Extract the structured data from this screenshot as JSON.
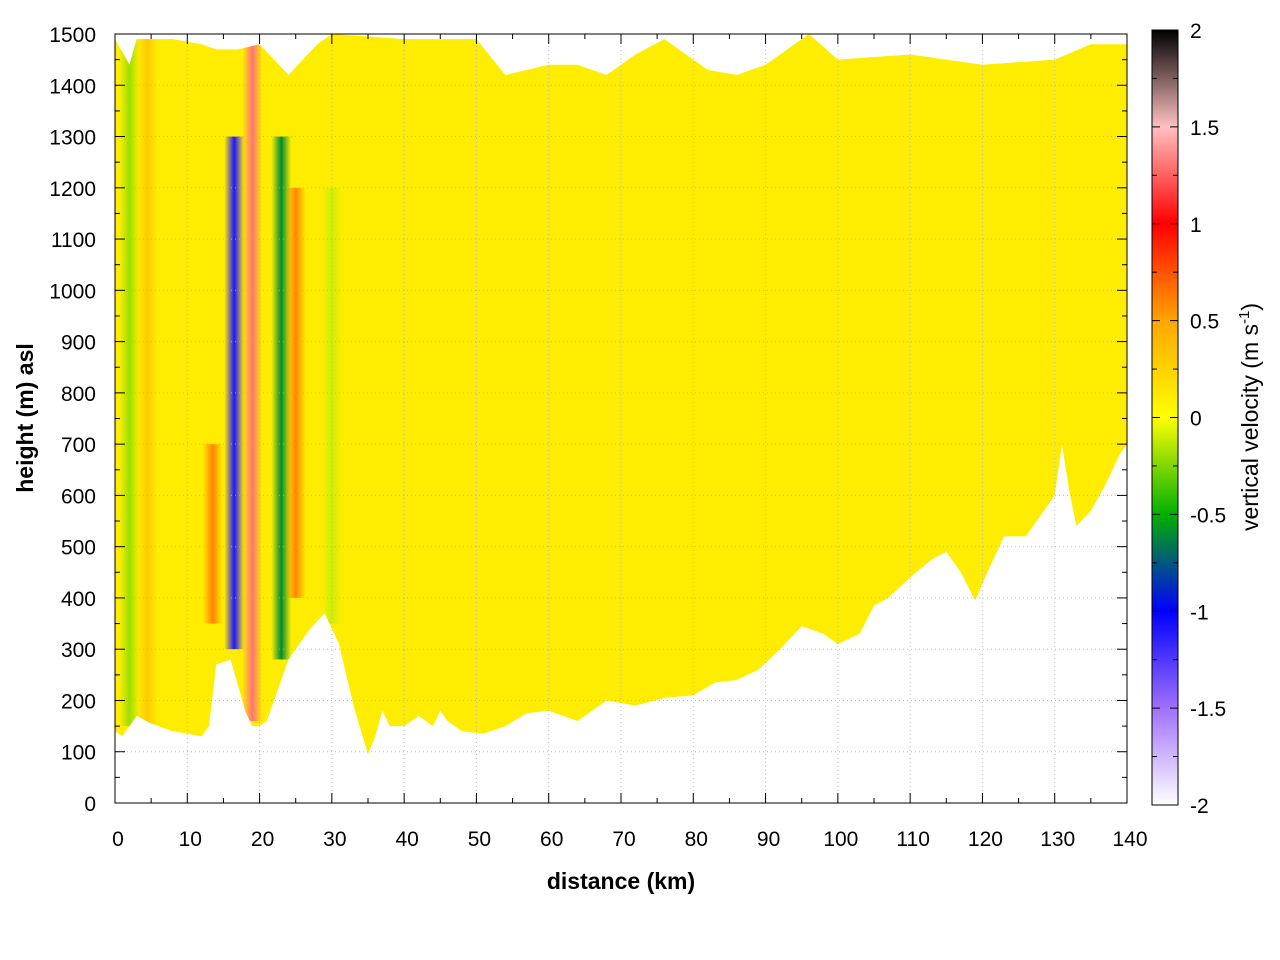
{
  "chart_data": {
    "type": "heatmap",
    "xlabel": "distance (km)",
    "ylabel": "height (m) asl",
    "colorbar_label": "vertical velocity (m s",
    "colorbar_label_sup": "-1",
    "colorbar_label_end": ")",
    "xlim": [
      0,
      140
    ],
    "ylim": [
      0,
      1500
    ],
    "clim": [
      -2,
      2
    ],
    "x_ticks": [
      "0",
      "10",
      "20",
      "30",
      "40",
      "50",
      "60",
      "70",
      "80",
      "90",
      "100",
      "110",
      "120",
      "130",
      "140"
    ],
    "y_ticks": [
      "0",
      "100",
      "200",
      "300",
      "400",
      "500",
      "600",
      "700",
      "800",
      "900",
      "1000",
      "1100",
      "1200",
      "1300",
      "1400",
      "1500"
    ],
    "colorbar_ticks": [
      "-2",
      "-1.5",
      "-1",
      "-0.5",
      "0",
      "0.5",
      "1",
      "1.5",
      "2"
    ],
    "grid": true,
    "colormap": [
      "#ffffff",
      "#a070ff",
      "#0000ff",
      "#00b000",
      "#ffff00",
      "#ffa500",
      "#ff0000",
      "#ffc0c0",
      "#000000"
    ],
    "background_value": 0.1,
    "features": [
      {
        "x": 2,
        "y_from": 150,
        "y_to": 1490,
        "value": -0.2
      },
      {
        "x": 4.5,
        "y_from": 150,
        "y_to": 1490,
        "value": 0.3
      },
      {
        "x": 13.5,
        "y_from": 350,
        "y_to": 700,
        "value": 0.6
      },
      {
        "x": 16.5,
        "y_from": 300,
        "y_to": 1300,
        "value": -1.1
      },
      {
        "x": 19,
        "y_from": 160,
        "y_to": 1490,
        "value": 1.3
      },
      {
        "x": 23,
        "y_from": 280,
        "y_to": 1300,
        "value": -0.6
      },
      {
        "x": 25,
        "y_from": 400,
        "y_to": 1200,
        "value": 0.6
      },
      {
        "x": 30,
        "y_from": 350,
        "y_to": 1200,
        "value": -0.1
      }
    ],
    "top_boundary": [
      [
        0,
        1490
      ],
      [
        2,
        1440
      ],
      [
        3,
        1490
      ],
      [
        5,
        1490
      ],
      [
        8,
        1490
      ],
      [
        12,
        1480
      ],
      [
        14,
        1470
      ],
      [
        17,
        1470
      ],
      [
        20,
        1480
      ],
      [
        24,
        1420
      ],
      [
        28,
        1480
      ],
      [
        30,
        1500
      ],
      [
        40,
        1490
      ],
      [
        50,
        1490
      ],
      [
        54,
        1420
      ],
      [
        60,
        1440
      ],
      [
        64,
        1440
      ],
      [
        68,
        1420
      ],
      [
        72,
        1460
      ],
      [
        76,
        1490
      ],
      [
        82,
        1430
      ],
      [
        86,
        1420
      ],
      [
        90,
        1440
      ],
      [
        96,
        1500
      ],
      [
        100,
        1450
      ],
      [
        110,
        1460
      ],
      [
        120,
        1440
      ],
      [
        130,
        1450
      ],
      [
        135,
        1480
      ],
      [
        140,
        1480
      ]
    ],
    "bottom_boundary": [
      [
        0,
        140
      ],
      [
        1,
        130
      ],
      [
        3,
        170
      ],
      [
        5,
        155
      ],
      [
        8,
        140
      ],
      [
        10,
        135
      ],
      [
        12,
        130
      ],
      [
        13,
        150
      ],
      [
        14,
        270
      ],
      [
        16,
        280
      ],
      [
        18,
        180
      ],
      [
        19,
        150
      ],
      [
        20,
        150
      ],
      [
        21,
        160
      ],
      [
        22,
        200
      ],
      [
        24,
        280
      ],
      [
        27,
        340
      ],
      [
        29,
        370
      ],
      [
        31,
        310
      ],
      [
        33,
        190
      ],
      [
        35,
        95
      ],
      [
        36,
        130
      ],
      [
        37,
        180
      ],
      [
        38,
        150
      ],
      [
        40,
        150
      ],
      [
        42,
        170
      ],
      [
        44,
        150
      ],
      [
        45,
        180
      ],
      [
        46,
        160
      ],
      [
        48,
        140
      ],
      [
        51,
        135
      ],
      [
        54,
        150
      ],
      [
        57,
        175
      ],
      [
        60,
        180
      ],
      [
        64,
        160
      ],
      [
        68,
        200
      ],
      [
        72,
        190
      ],
      [
        76,
        205
      ],
      [
        80,
        210
      ],
      [
        83,
        235
      ],
      [
        86,
        240
      ],
      [
        89,
        260
      ],
      [
        92,
        300
      ],
      [
        95,
        345
      ],
      [
        98,
        330
      ],
      [
        100,
        310
      ],
      [
        103,
        330
      ],
      [
        105,
        385
      ],
      [
        107,
        400
      ],
      [
        110,
        440
      ],
      [
        113,
        475
      ],
      [
        115,
        490
      ],
      [
        117,
        450
      ],
      [
        119,
        395
      ],
      [
        121,
        460
      ],
      [
        123,
        520
      ],
      [
        126,
        520
      ],
      [
        128,
        560
      ],
      [
        130,
        600
      ],
      [
        131,
        700
      ],
      [
        132,
        610
      ],
      [
        133,
        540
      ],
      [
        135,
        570
      ],
      [
        137,
        620
      ],
      [
        139,
        680
      ],
      [
        140,
        700
      ]
    ]
  }
}
